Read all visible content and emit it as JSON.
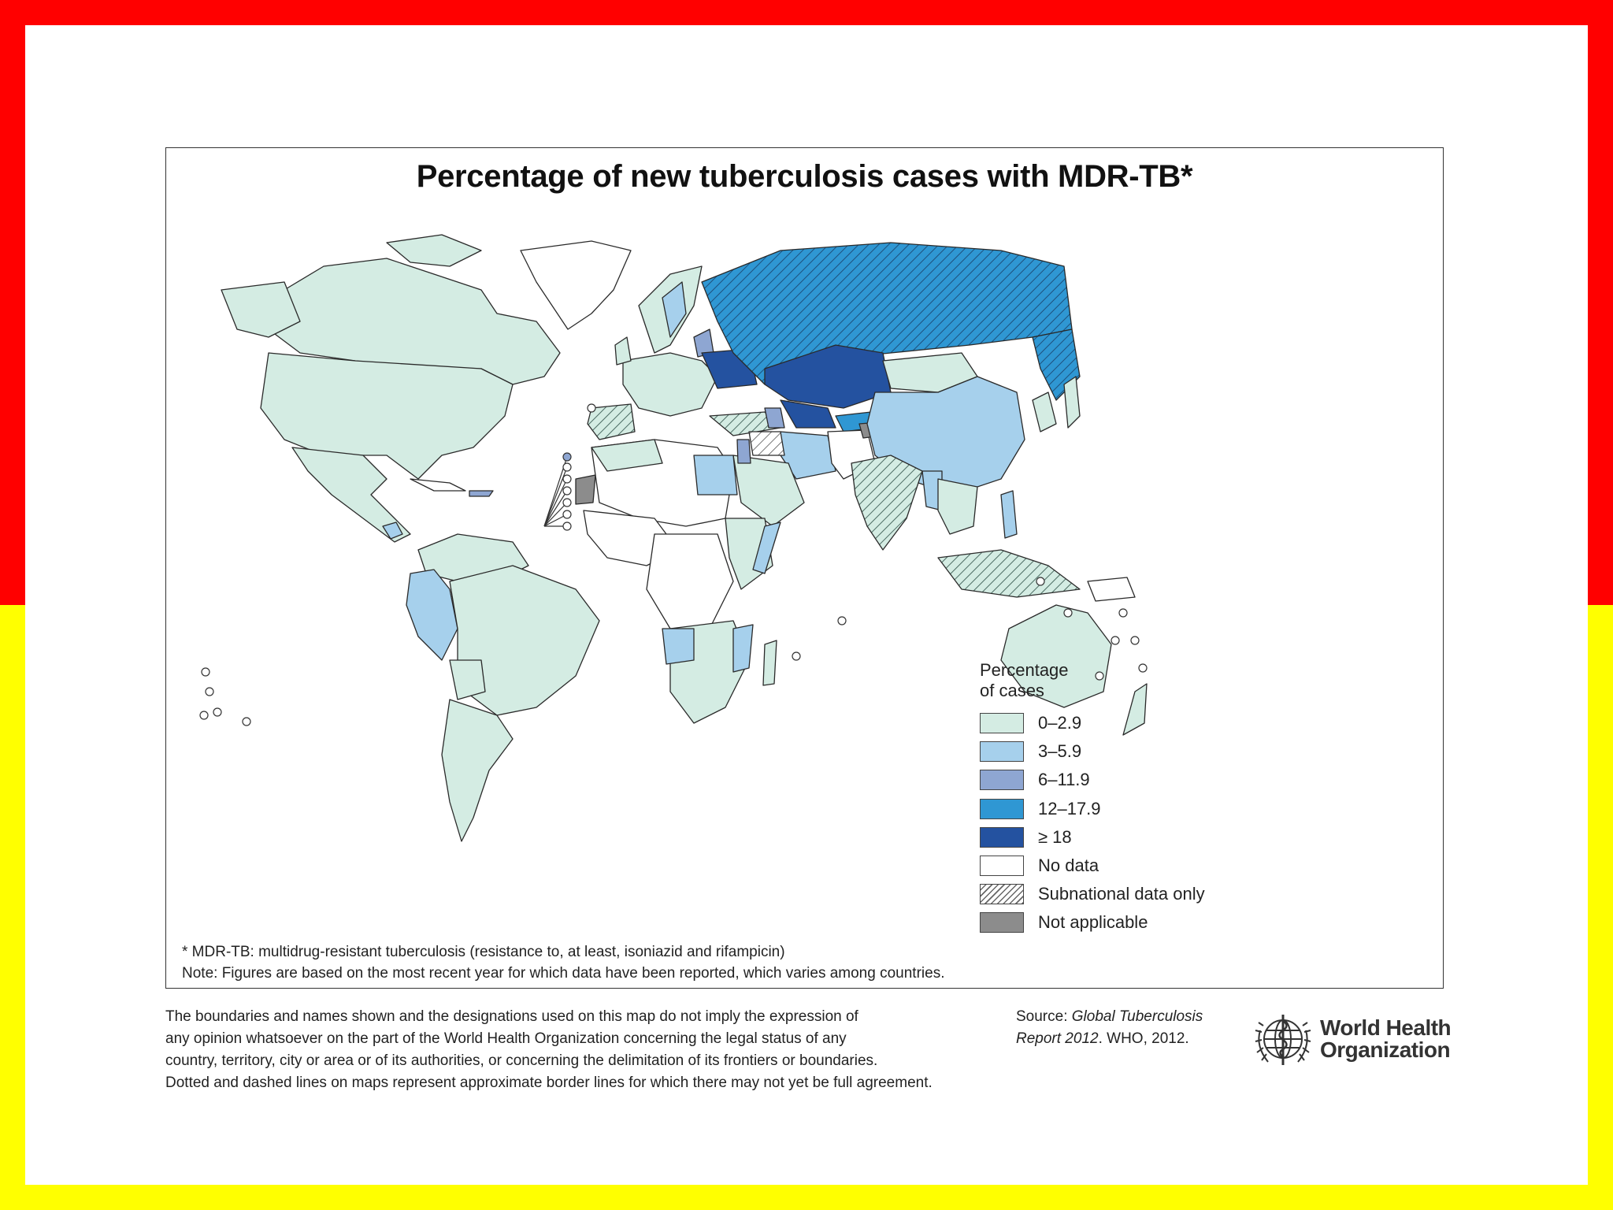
{
  "map": {
    "title": "Percentage of new tuberculosis cases with MDR-TB*",
    "legend": {
      "title_line1": "Percentage",
      "title_line2": "of cases",
      "items": [
        {
          "label": "0–2.9",
          "color": "#d4ece3"
        },
        {
          "label": "3–5.9",
          "color": "#a6d0ec"
        },
        {
          "label": "6–11.9",
          "color": "#8ea6d2"
        },
        {
          "label": "12–17.9",
          "color": "#2f97d3"
        },
        {
          "label": "≥ 18",
          "color": "#2452a0"
        },
        {
          "label": "No data",
          "color": "#ffffff"
        },
        {
          "label": "Subnational data only",
          "color": "hatched"
        },
        {
          "label": "Not applicable",
          "color": "#8c8c8c"
        }
      ]
    },
    "footnote": "* MDR-TB: multidrug-resistant tuberculosis (resistance to, at least, isoniazid and rifampicin)",
    "note": "Note: Figures are based on the most recent year for which data have been reported, which varies among countries."
  },
  "disclaimer": {
    "line1": "The boundaries and names shown and the designations used on this map do not imply the expression of",
    "line2": "any opinion whatsoever on the part of the World Health Organization concerning the legal status of any",
    "line3": "country, territory, city or area or of its authorities, or concerning the delimitation of its frontiers or boundaries.",
    "line4": "Dotted and dashed lines on maps represent approximate border lines for which there may not yet be full agreement."
  },
  "source": {
    "prefix": "Source: ",
    "italic_title": "Global Tuberculosis",
    "italic_line2": "Report 2012",
    "suffix": ". WHO, 2012."
  },
  "logo": {
    "line1": "World Health",
    "line2": "Organization"
  },
  "colors": {
    "band_top": "#ff0000",
    "band_bottom": "#ffff00"
  }
}
